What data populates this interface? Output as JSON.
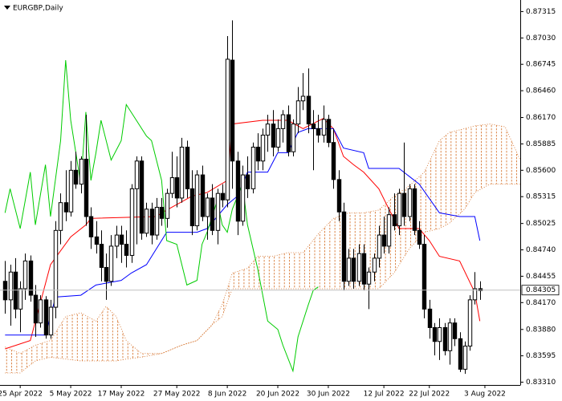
{
  "chart_data": {
    "type": "candlestick",
    "title": "EURGBP,Daily",
    "xlim": [
      -1,
      102
    ],
    "ylim": [
      0.8328,
      0.8744
    ],
    "yticks": [
      0.87315,
      {
        "value": 0.8703,
        "label": "0.87030"
      },
      0.86745,
      {
        "value": 0.8646,
        "label": "0.86460"
      },
      {
        "value": 0.8617,
        "label": "0.86170"
      },
      0.85885,
      {
        "value": 0.856,
        "label": "0.85600"
      },
      0.85315,
      0.85025,
      {
        "value": 0.8474,
        "label": "0.84740"
      },
      0.84455,
      {
        "value": 0.8417,
        "label": "0.84170"
      },
      {
        "value": 0.8388,
        "label": "0.83880"
      },
      0.83595,
      {
        "value": 0.8331,
        "label": "0.83310"
      }
    ],
    "xticks": [
      {
        "value": 3,
        "label": "25 Apr 2022"
      },
      {
        "value": 13,
        "label": "5 May 2022"
      },
      {
        "value": 23,
        "label": "17 May 2022"
      },
      {
        "value": 34,
        "label": "27 May 2022"
      },
      {
        "value": 44,
        "label": "8 Jun 2022"
      },
      {
        "value": 54,
        "label": "20 Jun 2022"
      },
      {
        "value": 64,
        "label": "30 Jun 2022"
      },
      {
        "value": 75,
        "label": "12 Jul 2022"
      },
      {
        "value": 84,
        "label": "22 Jul 2022"
      },
      {
        "value": 95,
        "label": "3 Aug 2022"
      }
    ],
    "last_price": 0.84305,
    "ohlc": [
      [
        0.844,
        0.8462,
        0.8405,
        0.842
      ],
      [
        0.842,
        0.8458,
        0.8392,
        0.845
      ],
      [
        0.845,
        0.8465,
        0.84,
        0.841
      ],
      [
        0.841,
        0.844,
        0.8385,
        0.8432
      ],
      [
        0.8432,
        0.847,
        0.842,
        0.8462
      ],
      [
        0.8462,
        0.8468,
        0.8418,
        0.8425
      ],
      [
        0.8425,
        0.8436,
        0.838,
        0.8395
      ],
      [
        0.8395,
        0.8425,
        0.839,
        0.842
      ],
      [
        0.842,
        0.8424,
        0.8378,
        0.8382
      ],
      [
        0.8382,
        0.842,
        0.8378,
        0.8412
      ],
      [
        0.8412,
        0.8505,
        0.84,
        0.8495
      ],
      [
        0.8495,
        0.8535,
        0.848,
        0.8525
      ],
      [
        0.8525,
        0.856,
        0.8505,
        0.8515
      ],
      [
        0.8515,
        0.857,
        0.851,
        0.856
      ],
      [
        0.856,
        0.858,
        0.854,
        0.8545
      ],
      [
        0.8545,
        0.8575,
        0.8535,
        0.8572
      ],
      [
        0.8572,
        0.862,
        0.85,
        0.851
      ],
      [
        0.851,
        0.852,
        0.8475,
        0.8488
      ],
      [
        0.8488,
        0.8505,
        0.847,
        0.848
      ],
      [
        0.848,
        0.8495,
        0.844,
        0.8455
      ],
      [
        0.8455,
        0.847,
        0.842,
        0.844
      ],
      [
        0.844,
        0.849,
        0.8435,
        0.8478
      ],
      [
        0.8478,
        0.85,
        0.8465,
        0.849
      ],
      [
        0.849,
        0.85,
        0.846,
        0.848
      ],
      [
        0.848,
        0.8495,
        0.8455,
        0.8468
      ],
      [
        0.8468,
        0.8545,
        0.846,
        0.854
      ],
      [
        0.854,
        0.8575,
        0.848,
        0.857
      ],
      [
        0.857,
        0.8575,
        0.8485,
        0.8492
      ],
      [
        0.8492,
        0.8525,
        0.8488,
        0.8518
      ],
      [
        0.8518,
        0.8525,
        0.848,
        0.849
      ],
      [
        0.849,
        0.853,
        0.8485,
        0.852
      ],
      [
        0.852,
        0.853,
        0.85,
        0.8508
      ],
      [
        0.8508,
        0.854,
        0.8498,
        0.8535
      ],
      [
        0.8535,
        0.858,
        0.853,
        0.8552
      ],
      [
        0.8552,
        0.8575,
        0.852,
        0.853
      ],
      [
        0.853,
        0.8595,
        0.8525,
        0.8585
      ],
      [
        0.8585,
        0.8592,
        0.853,
        0.854
      ],
      [
        0.854,
        0.856,
        0.849,
        0.85
      ],
      [
        0.85,
        0.856,
        0.8495,
        0.8555
      ],
      [
        0.8555,
        0.8565,
        0.8505,
        0.851
      ],
      [
        0.851,
        0.8535,
        0.8485,
        0.853
      ],
      [
        0.853,
        0.8545,
        0.849,
        0.8495
      ],
      [
        0.8495,
        0.854,
        0.848,
        0.8535
      ],
      [
        0.8535,
        0.8545,
        0.852,
        0.8528
      ],
      [
        0.8528,
        0.8705,
        0.852,
        0.868
      ],
      [
        0.8679,
        0.8722,
        0.854,
        0.857
      ],
      [
        0.857,
        0.858,
        0.849,
        0.8505
      ],
      [
        0.8505,
        0.8565,
        0.85,
        0.8555
      ],
      [
        0.8555,
        0.8575,
        0.853,
        0.854
      ],
      [
        0.854,
        0.859,
        0.8535,
        0.8585
      ],
      [
        0.8585,
        0.86,
        0.856,
        0.857
      ],
      [
        0.857,
        0.8605,
        0.856,
        0.8598
      ],
      [
        0.8598,
        0.862,
        0.858,
        0.861
      ],
      [
        0.861,
        0.8625,
        0.8575,
        0.8585
      ],
      [
        0.8585,
        0.8615,
        0.858,
        0.8605
      ],
      [
        0.8605,
        0.8625,
        0.859,
        0.862
      ],
      [
        0.862,
        0.863,
        0.8575,
        0.858
      ],
      [
        0.858,
        0.8615,
        0.8575,
        0.861
      ],
      [
        0.861,
        0.865,
        0.86,
        0.8635
      ],
      [
        0.8635,
        0.8665,
        0.8625,
        0.864
      ],
      [
        0.864,
        0.867,
        0.86,
        0.861
      ],
      [
        0.861,
        0.8625,
        0.856,
        0.8605
      ],
      [
        0.8605,
        0.862,
        0.859,
        0.8598
      ],
      [
        0.8598,
        0.863,
        0.859,
        0.8615
      ],
      [
        0.8615,
        0.862,
        0.8585,
        0.859
      ],
      [
        0.859,
        0.8605,
        0.854,
        0.855
      ],
      [
        0.855,
        0.856,
        0.8505,
        0.8515
      ],
      [
        0.8515,
        0.8525,
        0.843,
        0.844
      ],
      [
        0.844,
        0.8475,
        0.8435,
        0.8465
      ],
      [
        0.8465,
        0.8475,
        0.8432,
        0.844
      ],
      [
        0.844,
        0.848,
        0.8435,
        0.847
      ],
      [
        0.847,
        0.848,
        0.843,
        0.8437
      ],
      [
        0.8437,
        0.8455,
        0.841,
        0.845
      ],
      [
        0.845,
        0.847,
        0.844,
        0.8465
      ],
      [
        0.8465,
        0.85,
        0.8455,
        0.849
      ],
      [
        0.849,
        0.851,
        0.847,
        0.8478
      ],
      [
        0.8478,
        0.852,
        0.847,
        0.8512
      ],
      [
        0.8512,
        0.8535,
        0.8495,
        0.85
      ],
      [
        0.85,
        0.854,
        0.849,
        0.8535
      ],
      [
        0.8535,
        0.859,
        0.85,
        0.851
      ],
      [
        0.851,
        0.8545,
        0.8505,
        0.854
      ],
      [
        0.854,
        0.8545,
        0.849,
        0.8495
      ],
      [
        0.8495,
        0.8505,
        0.8475,
        0.848
      ],
      [
        0.848,
        0.849,
        0.84,
        0.841
      ],
      [
        0.841,
        0.842,
        0.8378,
        0.839
      ],
      [
        0.839,
        0.8395,
        0.836,
        0.8375
      ],
      [
        0.8375,
        0.84,
        0.8355,
        0.839
      ],
      [
        0.839,
        0.8395,
        0.836,
        0.8365
      ],
      [
        0.8365,
        0.84,
        0.835,
        0.8395
      ],
      [
        0.8395,
        0.84,
        0.837,
        0.8378
      ],
      [
        0.8378,
        0.8385,
        0.8342,
        0.8345
      ],
      [
        0.8345,
        0.8375,
        0.834,
        0.837
      ],
      [
        0.837,
        0.8425,
        0.8365,
        0.842
      ],
      [
        0.842,
        0.845,
        0.8415,
        0.8432
      ],
      [
        0.8432,
        0.844,
        0.842,
        0.843
      ]
    ],
    "cloud": {
      "color": "#d2691e",
      "x": [
        0,
        3,
        6,
        9,
        12,
        15,
        18,
        20,
        22,
        24,
        27,
        31,
        35,
        38,
        41,
        43,
        45,
        48,
        50,
        53,
        56,
        59,
        62,
        65,
        68,
        71,
        74,
        77,
        80,
        83,
        86,
        88,
        91,
        93,
        96,
        99,
        102
      ],
      "span_a": [
        0.8369,
        0.8362,
        0.8371,
        0.8376,
        0.8402,
        0.8406,
        0.8397,
        0.8413,
        0.8402,
        0.8376,
        0.8362,
        0.8362,
        0.8371,
        0.8376,
        0.8393,
        0.8415,
        0.8449,
        0.8454,
        0.8467,
        0.8467,
        0.8471,
        0.8471,
        0.8491,
        0.8508,
        0.8514,
        0.8514,
        0.8517,
        0.8532,
        0.8543,
        0.8558,
        0.8592,
        0.8601,
        0.8605,
        0.8608,
        0.861,
        0.8607,
        0.8571
      ],
      "span_b": [
        0.8341,
        0.8341,
        0.8354,
        0.8358,
        0.8356,
        0.8354,
        0.8354,
        0.8354,
        0.8354,
        0.8356,
        0.8358,
        0.8362,
        0.8371,
        0.8376,
        0.8393,
        0.8402,
        0.8432,
        0.8432,
        0.8432,
        0.8432,
        0.8432,
        0.8432,
        0.8432,
        0.8432,
        0.8432,
        0.8432,
        0.8432,
        0.8449,
        0.8475,
        0.8493,
        0.8497,
        0.8503,
        0.8518,
        0.8536,
        0.8545,
        0.8545,
        0.8545
      ]
    },
    "lines": [
      {
        "color": "#ff0000",
        "x": [
          0,
          5,
          9,
          13,
          16,
          17,
          30,
          31,
          37,
          40,
          44,
          45,
          51,
          56,
          59,
          63,
          65,
          67,
          69,
          71,
          74,
          76,
          78,
          82,
          84,
          86,
          90,
          93,
          94
        ],
        "values": [
          0.8367,
          0.8376,
          0.8458,
          0.8488,
          0.8501,
          0.8508,
          0.851,
          0.8514,
          0.8532,
          0.8536,
          0.8549,
          0.861,
          0.8614,
          0.8614,
          0.8605,
          0.8616,
          0.8605,
          0.8575,
          0.8566,
          0.8558,
          0.854,
          0.8518,
          0.8497,
          0.8497,
          0.8484,
          0.8467,
          0.8462,
          0.8428,
          0.8397
        ]
      },
      {
        "color": "#0000ff",
        "x": [
          0,
          8,
          10,
          15,
          18,
          23,
          25,
          28,
          32,
          38,
          40,
          44,
          46,
          48,
          52,
          54,
          56,
          58,
          60,
          65,
          67,
          71,
          72,
          78,
          82,
          86,
          90,
          93,
          94
        ],
        "values": [
          0.8382,
          0.8382,
          0.8423,
          0.8425,
          0.8436,
          0.8441,
          0.8449,
          0.8458,
          0.8493,
          0.8493,
          0.8497,
          0.8523,
          0.8532,
          0.8558,
          0.8558,
          0.8579,
          0.8579,
          0.8601,
          0.8605,
          0.8605,
          0.8584,
          0.8579,
          0.8562,
          0.8562,
          0.8545,
          0.8514,
          0.851,
          0.851,
          0.8484
        ]
      },
      {
        "color": "#00cc00",
        "x": [
          0,
          1,
          3,
          5,
          6,
          8,
          9,
          11,
          12,
          13,
          15,
          16,
          17,
          18,
          19,
          21,
          23,
          24,
          26,
          28,
          29,
          31,
          32,
          34,
          36,
          38,
          39,
          40,
          42,
          43,
          44,
          45,
          47,
          48,
          50,
          52,
          54,
          55,
          57,
          58,
          60,
          61,
          62
        ],
        "values": [
          0.8514,
          0.854,
          0.8497,
          0.8558,
          0.8501,
          0.8566,
          0.851,
          0.8592,
          0.8679,
          0.8614,
          0.8545,
          0.8623,
          0.8549,
          0.8579,
          0.8614,
          0.8571,
          0.8592,
          0.8631,
          0.8614,
          0.8597,
          0.8592,
          0.8549,
          0.8484,
          0.848,
          0.8436,
          0.8441,
          0.848,
          0.8493,
          0.8527,
          0.8501,
          0.8493,
          0.8518,
          0.8545,
          0.8501,
          0.8454,
          0.8397,
          0.8388,
          0.8371,
          0.8343,
          0.838,
          0.8414,
          0.843,
          0.8434
        ]
      }
    ]
  }
}
